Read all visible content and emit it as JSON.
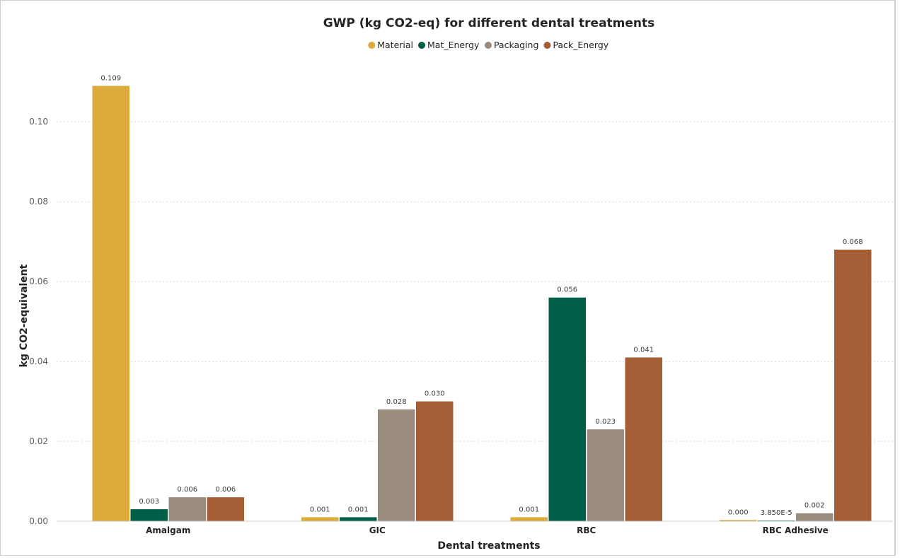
{
  "chart_data": {
    "type": "bar",
    "title": "GWP (kg CO2-eq) for different dental treatments",
    "xlabel": "Dental treatments",
    "ylabel": "kg CO2-equivalent",
    "categories": [
      "Amalgam",
      "GIC",
      "RBC",
      "RBC Adhesive"
    ],
    "series": [
      {
        "name": "Material",
        "color": "#DDAA3C",
        "values": [
          0.109,
          0.001,
          0.001,
          0.0003
        ],
        "labels": [
          "0.109",
          "0.001",
          "0.001",
          "0.000"
        ]
      },
      {
        "name": "Mat_Energy",
        "color": "#005F46",
        "values": [
          0.003,
          0.001,
          0.056,
          3.85e-05
        ],
        "labels": [
          "0.003",
          "0.001",
          "0.056",
          "3.850E-5"
        ]
      },
      {
        "name": "Packaging",
        "color": "#9A8B7F",
        "values": [
          0.006,
          0.028,
          0.023,
          0.002
        ],
        "labels": [
          "0.006",
          "0.028",
          "0.023",
          "0.002"
        ]
      },
      {
        "name": "Pack_Energy",
        "color": "#A35E36",
        "values": [
          0.006,
          0.03,
          0.041,
          0.068
        ],
        "labels": [
          "0.006",
          "0.030",
          "0.041",
          "0.068"
        ]
      }
    ],
    "yticks": [
      "0.00",
      "0.02",
      "0.04",
      "0.06",
      "0.08",
      "0.10"
    ],
    "ytick_values": [
      0,
      0.02,
      0.04,
      0.06,
      0.08,
      0.1
    ],
    "ylim": [
      0,
      0.1135
    ],
    "grid": true,
    "legend_position": "top-center"
  }
}
